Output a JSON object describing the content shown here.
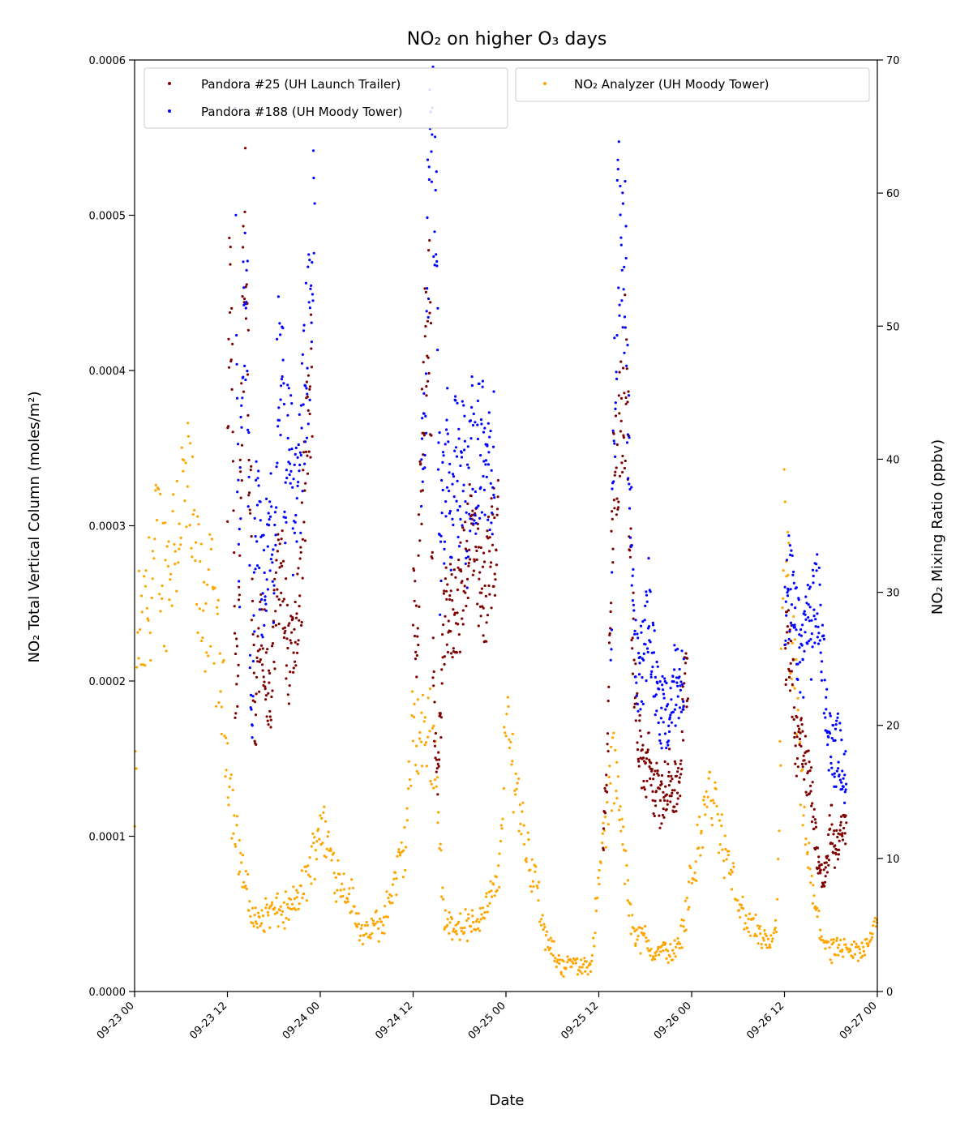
{
  "chart_data": {
    "type": "scatter",
    "title": "NO₂ on higher O₃ days",
    "xlabel": "Date",
    "ylabel_left": "NO₂ Total Vertical Column (moles/m²)",
    "ylabel_right": "NO₂ Mixing Ratio (ppbv)",
    "x_range_hours": [
      0,
      96
    ],
    "x_ticks": [
      {
        "hour": 0,
        "label": "09-23 00"
      },
      {
        "hour": 12,
        "label": "09-23 12"
      },
      {
        "hour": 24,
        "label": "09-24 00"
      },
      {
        "hour": 36,
        "label": "09-24 12"
      },
      {
        "hour": 48,
        "label": "09-25 00"
      },
      {
        "hour": 60,
        "label": "09-25 12"
      },
      {
        "hour": 72,
        "label": "09-26 00"
      },
      {
        "hour": 84,
        "label": "09-26 12"
      },
      {
        "hour": 96,
        "label": "09-27 00"
      }
    ],
    "ylim_left": [
      0,
      0.0006
    ],
    "y_ticks_left": [
      "0.0000",
      "0.0001",
      "0.0002",
      "0.0003",
      "0.0004",
      "0.0005",
      "0.0006"
    ],
    "ylim_right": [
      0,
      70
    ],
    "y_ticks_right": [
      "0",
      "10",
      "20",
      "30",
      "40",
      "50",
      "60",
      "70"
    ],
    "legend": {
      "placement": "top (two boxes: upper-left and upper-right)"
    },
    "series": [
      {
        "name": "Pandora #25 (UH Launch Trailer)",
        "color": "#800000",
        "axis": "left",
        "profile": [
          [
            12.0,
            0.00031
          ],
          [
            12.3,
            0.00045
          ],
          [
            12.6,
            0.00039
          ],
          [
            13.0,
            0.0002
          ],
          [
            13.3,
            0.00021
          ],
          [
            13.6,
            0.0003
          ],
          [
            14.0,
            0.00043
          ],
          [
            14.3,
            0.00048
          ],
          [
            14.6,
            0.0004
          ],
          [
            15.0,
            0.00032
          ],
          [
            15.3,
            0.00022
          ],
          [
            15.6,
            0.00016
          ],
          [
            16.0,
            0.00021
          ],
          [
            16.5,
            0.00024
          ],
          [
            17.0,
            0.0002
          ],
          [
            17.5,
            0.00018
          ],
          [
            18.0,
            0.00023
          ],
          [
            18.5,
            0.00026
          ],
          [
            19.0,
            0.00027
          ],
          [
            19.5,
            0.00024
          ],
          [
            20.0,
            0.00021
          ],
          [
            20.5,
            0.00022
          ],
          [
            21.0,
            0.00024
          ],
          [
            21.5,
            0.00026
          ],
          [
            22.0,
            0.00033
          ],
          [
            22.5,
            0.00036
          ],
          [
            23.0,
            0.00041
          ],
          [
            36.0,
            0.00025
          ],
          [
            36.5,
            0.00023
          ],
          [
            37.0,
            0.00032
          ],
          [
            37.5,
            0.0004
          ],
          [
            38.0,
            0.00045
          ],
          [
            38.3,
            0.00038
          ],
          [
            38.6,
            0.0002
          ],
          [
            39.0,
            0.00015
          ],
          [
            39.3,
            0.00014
          ],
          [
            39.6,
            0.00019
          ],
          [
            40.0,
            0.00023
          ],
          [
            40.5,
            0.00025
          ],
          [
            41.0,
            0.00024
          ],
          [
            41.5,
            0.00025
          ],
          [
            42.0,
            0.00025
          ],
          [
            42.5,
            0.00027
          ],
          [
            43.0,
            0.00029
          ],
          [
            43.5,
            0.0003
          ],
          [
            44.0,
            0.00028
          ],
          [
            44.5,
            0.00026
          ],
          [
            45.0,
            0.00025
          ],
          [
            45.5,
            0.00026
          ],
          [
            46.0,
            0.00028
          ],
          [
            46.5,
            0.00029
          ],
          [
            47.0,
            0.0003
          ],
          [
            60.5,
            0.0001
          ],
          [
            61.0,
            0.00013
          ],
          [
            61.5,
            0.00024
          ],
          [
            62.0,
            0.00034
          ],
          [
            62.5,
            0.00035
          ],
          [
            63.0,
            0.00037
          ],
          [
            63.5,
            0.0004
          ],
          [
            64.0,
            0.0003
          ],
          [
            64.5,
            0.00022
          ],
          [
            65.0,
            0.00017
          ],
          [
            65.5,
            0.00015
          ],
          [
            66.0,
            0.00014
          ],
          [
            66.5,
            0.00015
          ],
          [
            67.0,
            0.00013
          ],
          [
            67.5,
            0.00013
          ],
          [
            68.0,
            0.00012
          ],
          [
            68.5,
            0.00013
          ],
          [
            69.0,
            0.00014
          ],
          [
            69.5,
            0.00013
          ],
          [
            70.0,
            0.00013
          ],
          [
            70.5,
            0.00014
          ],
          [
            71.0,
            0.00019
          ],
          [
            71.5,
            0.00021
          ],
          [
            84.0,
            0.00022
          ],
          [
            84.5,
            0.00024
          ],
          [
            85.0,
            0.0002
          ],
          [
            85.5,
            0.00016
          ],
          [
            86.0,
            0.00017
          ],
          [
            86.5,
            0.00016
          ],
          [
            87.0,
            0.00014
          ],
          [
            87.5,
            0.00013
          ],
          [
            88.0,
            0.0001
          ],
          [
            88.5,
            8e-05
          ],
          [
            89.0,
            7e-05
          ],
          [
            89.5,
            8e-05
          ],
          [
            90.0,
            0.00011
          ],
          [
            90.5,
            9e-05
          ],
          [
            91.0,
            0.0001
          ],
          [
            91.5,
            0.0001
          ],
          [
            92.0,
            0.00011
          ]
        ]
      },
      {
        "name": "Pandora #188 (UH Moody Tower)",
        "color": "#0000ff",
        "axis": "left",
        "profile": [
          [
            13.0,
            0.00058
          ],
          [
            13.3,
            0.00033
          ],
          [
            13.6,
            0.00028
          ],
          [
            14.0,
            0.00041
          ],
          [
            14.3,
            0.00045
          ],
          [
            14.6,
            0.00042
          ],
          [
            15.0,
            0.00017
          ],
          [
            15.3,
            0.00018
          ],
          [
            15.6,
            0.00031
          ],
          [
            16.0,
            0.0003
          ],
          [
            16.5,
            0.00026
          ],
          [
            17.0,
            0.00028
          ],
          [
            17.5,
            0.00031
          ],
          [
            18.0,
            0.00026
          ],
          [
            18.5,
            0.00041
          ],
          [
            19.0,
            0.0004
          ],
          [
            19.5,
            0.00032
          ],
          [
            20.0,
            0.00037
          ],
          [
            20.5,
            0.00031
          ],
          [
            21.0,
            0.00032
          ],
          [
            21.5,
            0.00034
          ],
          [
            22.0,
            0.0004
          ],
          [
            22.5,
            0.00042
          ],
          [
            23.0,
            0.00047
          ],
          [
            23.3,
            0.0005
          ],
          [
            37.0,
            0.00032
          ],
          [
            37.5,
            0.00036
          ],
          [
            38.0,
            0.0005
          ],
          [
            38.3,
            0.0006
          ],
          [
            38.6,
            0.00055
          ],
          [
            39.0,
            0.0005
          ],
          [
            39.5,
            0.00027
          ],
          [
            40.0,
            0.00032
          ],
          [
            40.5,
            0.00035
          ],
          [
            41.0,
            0.0003
          ],
          [
            41.5,
            0.00036
          ],
          [
            42.0,
            0.00031
          ],
          [
            42.5,
            0.00034
          ],
          [
            43.0,
            0.0003
          ],
          [
            43.5,
            0.00036
          ],
          [
            44.0,
            0.00033
          ],
          [
            44.5,
            0.00035
          ],
          [
            45.0,
            0.00035
          ],
          [
            45.5,
            0.00032
          ],
          [
            46.0,
            0.00034
          ],
          [
            46.5,
            0.00034
          ],
          [
            61.5,
            0.00021
          ],
          [
            62.0,
            0.00038
          ],
          [
            62.5,
            0.00048
          ],
          [
            63.0,
            0.0005
          ],
          [
            63.5,
            0.00045
          ],
          [
            64.0,
            0.00032
          ],
          [
            64.5,
            0.00025
          ],
          [
            65.0,
            0.0002
          ],
          [
            65.5,
            0.00021
          ],
          [
            66.0,
            0.00022
          ],
          [
            66.5,
            0.00025
          ],
          [
            67.0,
            0.00021
          ],
          [
            67.5,
            0.0002
          ],
          [
            68.0,
            0.00018
          ],
          [
            68.5,
            0.00018
          ],
          [
            69.0,
            0.00017
          ],
          [
            69.5,
            0.00019
          ],
          [
            70.0,
            0.0002
          ],
          [
            70.5,
            0.0002
          ],
          [
            71.0,
            0.00021
          ],
          [
            84.0,
            0.00023
          ],
          [
            84.5,
            0.00026
          ],
          [
            85.0,
            0.00025
          ],
          [
            85.5,
            0.00023
          ],
          [
            86.0,
            0.00022
          ],
          [
            86.5,
            0.00022
          ],
          [
            87.0,
            0.00025
          ],
          [
            87.5,
            0.00023
          ],
          [
            88.0,
            0.00026
          ],
          [
            88.5,
            0.00024
          ],
          [
            89.0,
            0.00022
          ],
          [
            89.5,
            0.00017
          ],
          [
            90.0,
            0.00016
          ],
          [
            90.5,
            0.00015
          ],
          [
            91.0,
            0.00016
          ],
          [
            91.5,
            0.00014
          ],
          [
            92.0,
            0.00014
          ]
        ]
      },
      {
        "name": "NO₂ Analyzer (UH Moody Tower)",
        "color": "#ffa500",
        "axis": "right",
        "profile": [
          [
            0.0,
            12
          ],
          [
            0.5,
            28
          ],
          [
            1.0,
            26
          ],
          [
            2.0,
            30
          ],
          [
            3.0,
            34
          ],
          [
            4.0,
            31
          ],
          [
            5.0,
            34
          ],
          [
            6.0,
            37
          ],
          [
            7.0,
            37
          ],
          [
            8.0,
            31
          ],
          [
            9.0,
            29
          ],
          [
            10.0,
            29
          ],
          [
            11.0,
            24
          ],
          [
            12.0,
            18
          ],
          [
            13.0,
            12
          ],
          [
            14.0,
            9
          ],
          [
            15.0,
            6
          ],
          [
            16.0,
            5
          ],
          [
            17.0,
            6
          ],
          [
            18.0,
            6
          ],
          [
            19.0,
            6
          ],
          [
            20.0,
            6
          ],
          [
            21.0,
            7
          ],
          [
            22.0,
            8
          ],
          [
            23.0,
            10
          ],
          [
            24.0,
            13
          ],
          [
            25.0,
            11
          ],
          [
            26.0,
            9
          ],
          [
            27.0,
            8
          ],
          [
            28.0,
            7
          ],
          [
            29.0,
            5
          ],
          [
            30.0,
            4
          ],
          [
            31.0,
            5
          ],
          [
            32.0,
            5
          ],
          [
            33.0,
            7
          ],
          [
            34.0,
            9
          ],
          [
            35.0,
            11
          ],
          [
            36.0,
            20
          ],
          [
            37.0,
            19
          ],
          [
            38.0,
            20
          ],
          [
            39.0,
            17
          ],
          [
            40.0,
            5
          ],
          [
            41.0,
            5
          ],
          [
            42.0,
            5
          ],
          [
            43.0,
            5
          ],
          [
            44.0,
            5
          ],
          [
            45.0,
            6
          ],
          [
            46.0,
            7
          ],
          [
            47.0,
            8
          ],
          [
            48.0,
            20
          ],
          [
            49.0,
            17
          ],
          [
            50.0,
            13
          ],
          [
            51.0,
            10
          ],
          [
            52.0,
            8
          ],
          [
            53.0,
            4
          ],
          [
            54.0,
            3
          ],
          [
            55.0,
            2
          ],
          [
            56.0,
            2
          ],
          [
            57.0,
            2
          ],
          [
            58.0,
            2
          ],
          [
            59.0,
            2
          ],
          [
            60.0,
            8
          ],
          [
            61.0,
            14
          ],
          [
            62.0,
            17
          ],
          [
            63.0,
            12
          ],
          [
            64.0,
            6
          ],
          [
            65.0,
            4
          ],
          [
            66.0,
            4
          ],
          [
            67.0,
            3
          ],
          [
            68.0,
            3
          ],
          [
            69.0,
            3
          ],
          [
            70.0,
            3
          ],
          [
            71.0,
            5
          ],
          [
            72.0,
            9
          ],
          [
            73.0,
            11
          ],
          [
            74.0,
            15
          ],
          [
            75.0,
            14
          ],
          [
            76.0,
            11
          ],
          [
            77.0,
            9
          ],
          [
            78.0,
            7
          ],
          [
            79.0,
            5
          ],
          [
            80.0,
            5
          ],
          [
            81.0,
            4
          ],
          [
            82.0,
            3
          ],
          [
            83.0,
            5
          ],
          [
            84.0,
            34
          ],
          [
            85.0,
            26
          ],
          [
            86.0,
            17
          ],
          [
            87.0,
            10
          ],
          [
            88.0,
            6
          ],
          [
            89.0,
            4
          ],
          [
            90.0,
            3
          ],
          [
            91.0,
            3
          ],
          [
            92.0,
            3
          ],
          [
            93.0,
            3
          ],
          [
            94.0,
            3
          ],
          [
            95.0,
            4
          ],
          [
            96.0,
            6
          ]
        ]
      }
    ]
  }
}
